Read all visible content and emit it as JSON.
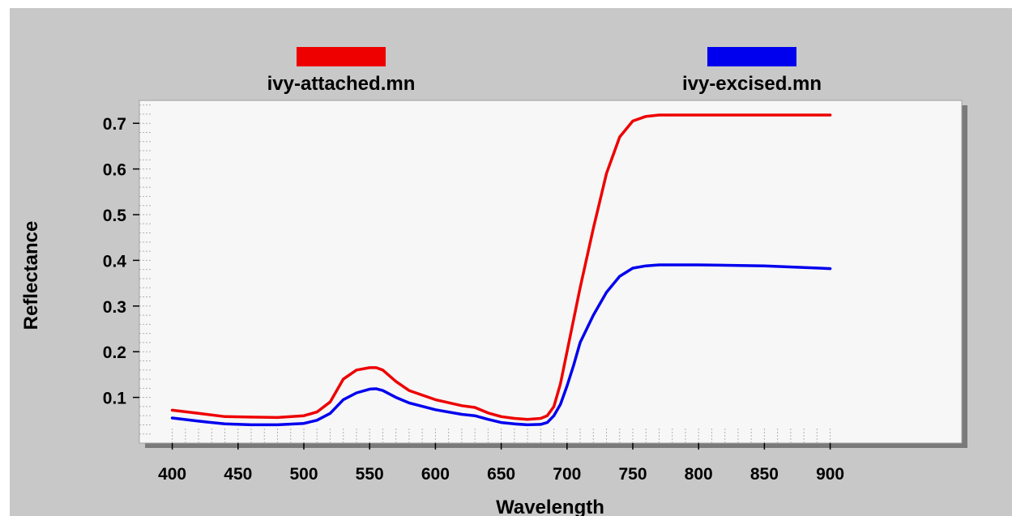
{
  "chart_data": {
    "type": "line",
    "title": "",
    "xlabel": "Wavelength",
    "ylabel": "Reflectance",
    "xlim": [
      375,
      1000
    ],
    "ylim": [
      0,
      0.75
    ],
    "x_ticks": [
      400,
      450,
      500,
      550,
      600,
      650,
      700,
      750,
      800,
      850,
      900
    ],
    "y_ticks": [
      0.1,
      0.2,
      0.3,
      0.4,
      0.5,
      0.6,
      0.7
    ],
    "x_tick_labels": [
      "400",
      "450",
      "500",
      "550",
      "600",
      "650",
      "700",
      "750",
      "800",
      "850",
      "900"
    ],
    "y_tick_labels": [
      "0.1",
      "0.2",
      "0.3",
      "0.4",
      "0.5",
      "0.6",
      "0.7"
    ],
    "legend_placement": "top",
    "grid": false,
    "x": [
      400,
      420,
      440,
      460,
      480,
      500,
      510,
      520,
      530,
      540,
      550,
      555,
      560,
      570,
      580,
      600,
      620,
      630,
      640,
      650,
      660,
      670,
      680,
      685,
      690,
      695,
      700,
      705,
      710,
      720,
      730,
      740,
      750,
      760,
      770,
      780,
      800,
      850,
      900
    ],
    "series": [
      {
        "name": "ivy-attached.mn",
        "color": "#ee0000",
        "values": [
          0.072,
          0.065,
          0.058,
          0.057,
          0.056,
          0.06,
          0.068,
          0.09,
          0.14,
          0.16,
          0.165,
          0.165,
          0.16,
          0.135,
          0.115,
          0.095,
          0.082,
          0.078,
          0.066,
          0.058,
          0.054,
          0.052,
          0.054,
          0.06,
          0.08,
          0.13,
          0.2,
          0.27,
          0.34,
          0.47,
          0.59,
          0.67,
          0.705,
          0.715,
          0.718,
          0.718,
          0.718,
          0.718,
          0.718
        ]
      },
      {
        "name": "ivy-excised.mn",
        "color": "#0000ee",
        "values": [
          0.055,
          0.048,
          0.042,
          0.04,
          0.04,
          0.043,
          0.05,
          0.065,
          0.095,
          0.11,
          0.118,
          0.119,
          0.115,
          0.1,
          0.088,
          0.073,
          0.063,
          0.06,
          0.052,
          0.045,
          0.042,
          0.04,
          0.041,
          0.045,
          0.06,
          0.085,
          0.125,
          0.17,
          0.22,
          0.28,
          0.33,
          0.365,
          0.383,
          0.388,
          0.39,
          0.39,
          0.39,
          0.388,
          0.382
        ]
      }
    ]
  }
}
